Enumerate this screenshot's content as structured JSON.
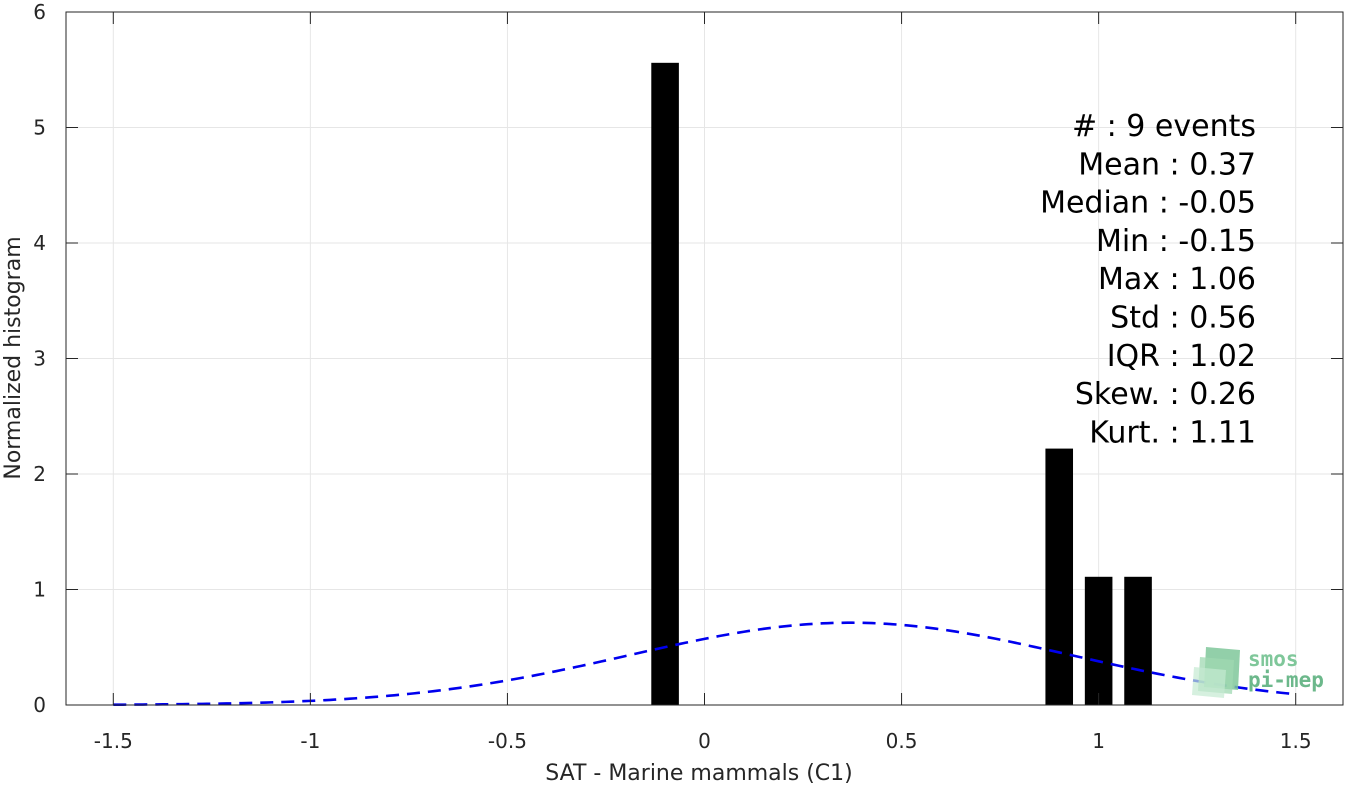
{
  "chart_data": {
    "type": "bar",
    "xlabel": "SAT - Marine mammals (C1)",
    "ylabel": "Normalized histogram",
    "xlim": [
      -1.62,
      1.62
    ],
    "ylim": [
      0,
      6
    ],
    "xticks": [
      -1.5,
      -1,
      -0.5,
      0,
      0.5,
      1,
      1.5
    ],
    "xtick_labels": [
      "-1.5",
      "-1",
      "-0.5",
      "0",
      "0.5",
      "1",
      "1.5"
    ],
    "yticks": [
      0,
      1,
      2,
      3,
      4,
      5,
      6
    ],
    "ytick_labels": [
      "0",
      "1",
      "2",
      "3",
      "4",
      "5",
      "6"
    ],
    "grid": true,
    "bar_width": 0.07,
    "bars": [
      {
        "x": -0.1,
        "value": 5.56
      },
      {
        "x": 0.9,
        "value": 2.22
      },
      {
        "x": 1.0,
        "value": 1.11
      },
      {
        "x": 1.1,
        "value": 1.11
      }
    ],
    "gaussian_fit": {
      "mean": 0.37,
      "std": 0.56,
      "x_range": [
        -1.5,
        1.5
      ],
      "style": "dashed",
      "color": "#0000ee"
    },
    "stats": [
      {
        "label": "#  : 9 events"
      },
      {
        "label": "Mean : 0.37"
      },
      {
        "label": "Median : -0.05"
      },
      {
        "label": "Min : -0.15"
      },
      {
        "label": "Max : 1.06"
      },
      {
        "label": "Std : 0.56"
      },
      {
        "label": "IQR : 1.02"
      },
      {
        "label": "Skew. : 0.26"
      },
      {
        "label": "Kurt. : 1.11"
      }
    ],
    "colors": {
      "bar": "#000000",
      "fit": "#0000ee",
      "grid": "#e6e6e6",
      "axis": "#262626"
    }
  },
  "logo": {
    "line1": "smos",
    "line2": "pi-mep"
  }
}
